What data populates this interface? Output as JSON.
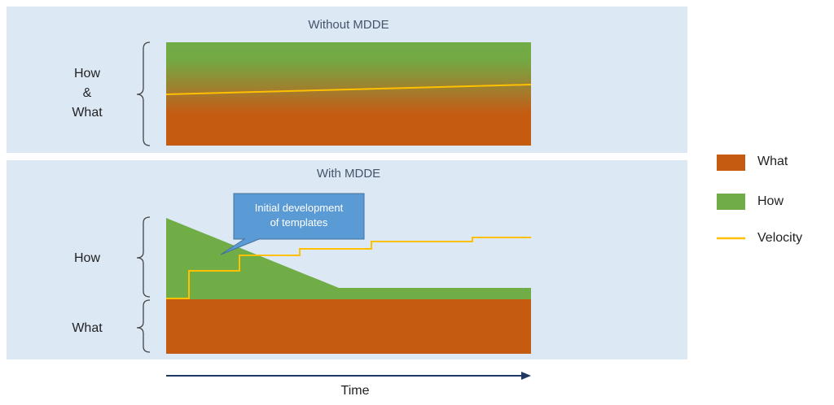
{
  "panels": {
    "without": {
      "title": "Without MDDE",
      "side_label_lines": [
        "How",
        "&",
        "What"
      ]
    },
    "with": {
      "title": "With MDDE",
      "side_labels": {
        "how": "How",
        "what": "What"
      },
      "callout": [
        "Initial development",
        "of templates"
      ]
    }
  },
  "legend": {
    "items": [
      {
        "label": "What",
        "color": "#c55a11"
      },
      {
        "label": "How",
        "color": "#70ad47"
      },
      {
        "label": "Velocity",
        "color": "#ffc000"
      }
    ]
  },
  "axis": {
    "label": "Time"
  }
}
